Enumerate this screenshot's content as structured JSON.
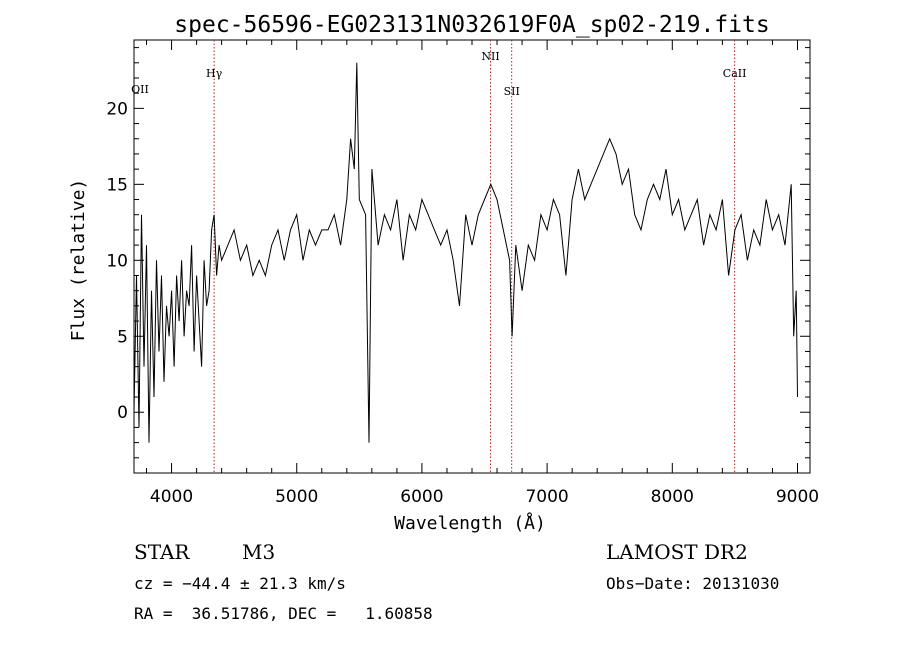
{
  "chart_data": {
    "type": "line",
    "title": "spec-56596-EG023131N032619F0A_sp02-219.fits",
    "xlabel": "Wavelength (Å)",
    "ylabel": "Flux (relative)",
    "xlim": [
      3700,
      9100
    ],
    "ylim": [
      -4,
      24.5
    ],
    "xticks": [
      "4000",
      "5000",
      "6000",
      "7000",
      "8000",
      "9000"
    ],
    "yticks": [
      "0",
      "5",
      "10",
      "15",
      "20"
    ],
    "grid": false,
    "line_color": "#000000",
    "marker_color": "#b22222",
    "lines": [
      {
        "label": "OII",
        "wavelength": 3727
      },
      {
        "label": "Hγ",
        "wavelength": 4340
      },
      {
        "label": "NII",
        "wavelength": 6548
      },
      {
        "label": "SII",
        "wavelength": 6717
      },
      {
        "label": "CaII",
        "wavelength": 8498
      }
    ],
    "series": [
      {
        "x": [
          3700,
          3720,
          3740,
          3760,
          3780,
          3800,
          3820,
          3840,
          3860,
          3880,
          3900,
          3920,
          3940,
          3960,
          3980,
          4000,
          4020,
          4040,
          4060,
          4080,
          4100,
          4120,
          4140,
          4160,
          4180,
          4200,
          4220,
          4240,
          4260,
          4280,
          4300,
          4320,
          4340,
          4360,
          4380,
          4400,
          4450,
          4500,
          4550,
          4600,
          4650,
          4700,
          4750,
          4800,
          4850,
          4900,
          4950,
          5000,
          5050,
          5100,
          5150,
          5200,
          5250,
          5300,
          5350,
          5400,
          5430,
          5460,
          5480,
          5500,
          5550,
          5577,
          5600,
          5650,
          5700,
          5750,
          5800,
          5850,
          5900,
          5950,
          6000,
          6050,
          6100,
          6150,
          6200,
          6250,
          6300,
          6350,
          6400,
          6450,
          6500,
          6550,
          6600,
          6650,
          6700,
          6720,
          6750,
          6800,
          6850,
          6900,
          6950,
          7000,
          7050,
          7100,
          7150,
          7200,
          7250,
          7300,
          7350,
          7400,
          7450,
          7500,
          7550,
          7600,
          7650,
          7700,
          7750,
          7800,
          7850,
          7900,
          7950,
          8000,
          8050,
          8100,
          8150,
          8200,
          8250,
          8300,
          8350,
          8400,
          8450,
          8500,
          8550,
          8600,
          8650,
          8700,
          8750,
          8800,
          8850,
          8900,
          8950,
          8970,
          8990,
          9000
        ],
        "y": [
          0,
          9,
          -1,
          13,
          3,
          11,
          -2,
          8,
          1,
          10,
          4,
          9,
          2,
          7,
          5,
          8,
          3,
          9,
          6,
          10,
          5,
          8,
          7,
          11,
          4,
          9,
          6,
          3,
          10,
          7,
          8,
          12,
          13,
          9,
          11,
          10,
          11,
          12,
          10,
          11,
          9,
          10,
          9,
          11,
          12,
          10,
          12,
          13,
          10,
          12,
          11,
          12,
          12,
          13,
          11,
          14,
          18,
          16,
          23,
          14,
          13,
          -2,
          16,
          11,
          13,
          12,
          14,
          10,
          13,
          12,
          14,
          13,
          12,
          11,
          12,
          10,
          7,
          13,
          11,
          13,
          14,
          15,
          14,
          12,
          10,
          5,
          11,
          8,
          11,
          10,
          13,
          12,
          14,
          13,
          9,
          14,
          16,
          14,
          15,
          16,
          17,
          18,
          17,
          15,
          16,
          13,
          12,
          14,
          15,
          14,
          16,
          13,
          14,
          12,
          13,
          14,
          11,
          13,
          12,
          14,
          9,
          12,
          13,
          10,
          12,
          11,
          14,
          12,
          13,
          11,
          15,
          5,
          8,
          1
        ]
      }
    ]
  },
  "footer": {
    "object_type": "STAR",
    "subclass": "M3",
    "survey": "LAMOST DR2",
    "cz": "cz = −44.4 ± 21.3 km/s",
    "obs_date": "Obs−Date: 20131030",
    "coords": "RA =  36.51786, DEC =   1.60858"
  }
}
